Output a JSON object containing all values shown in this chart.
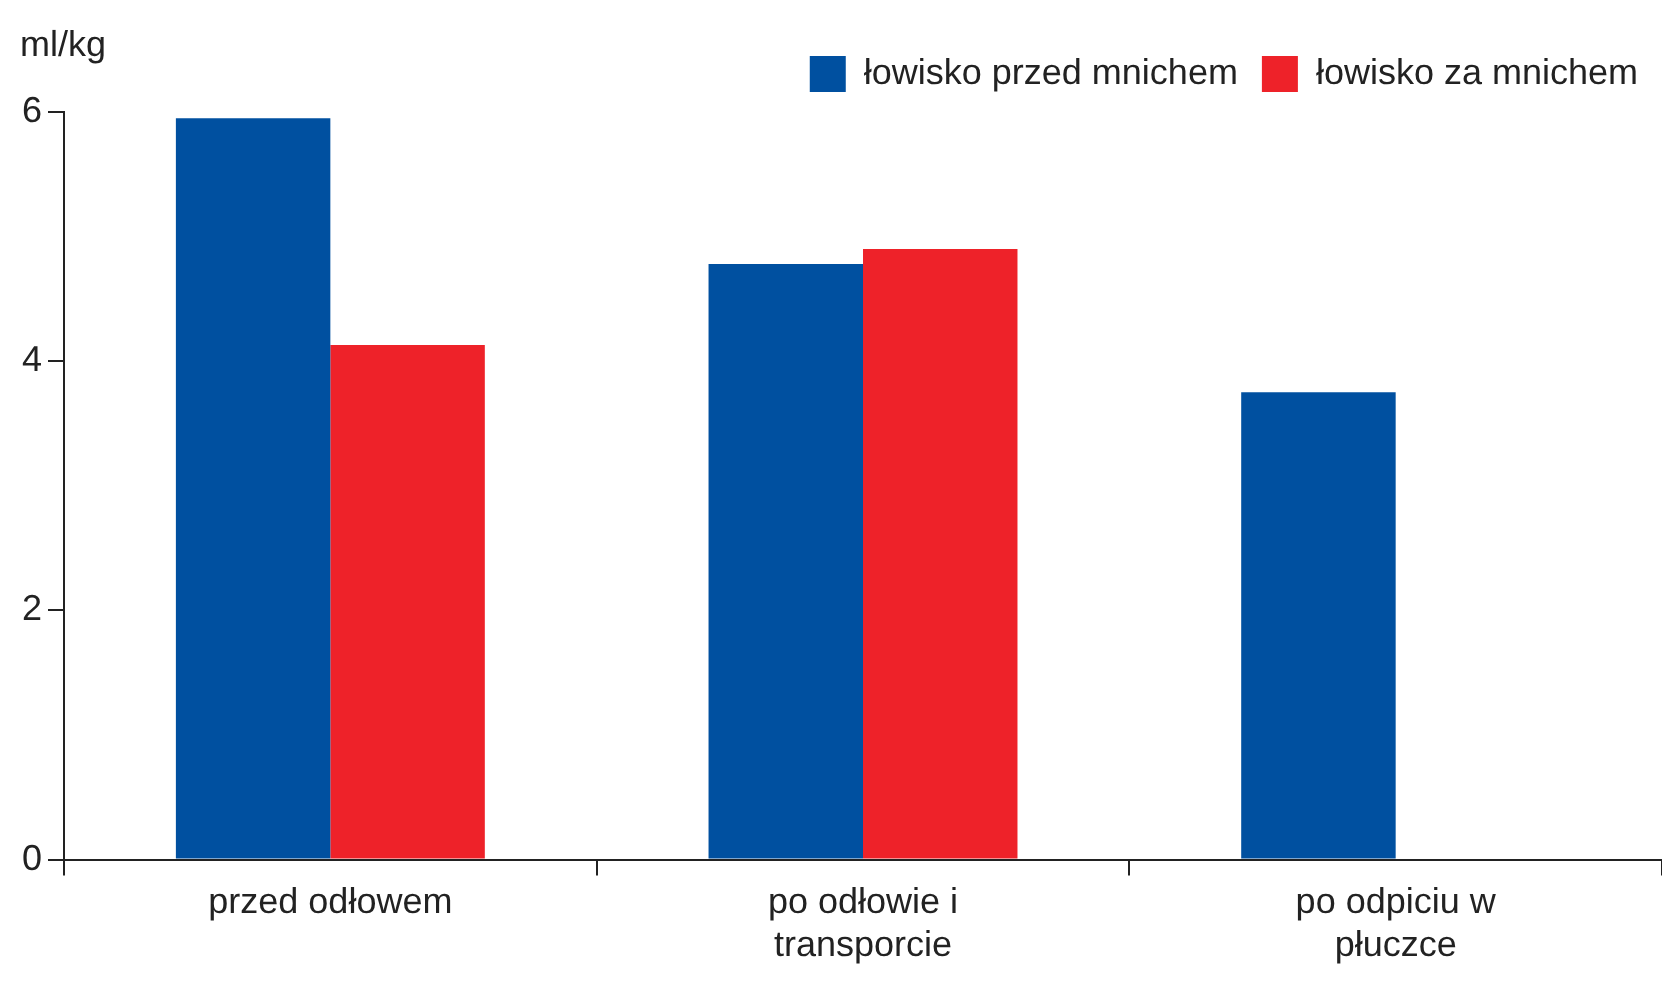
{
  "chart_data": {
    "type": "bar",
    "ylabel": "ml/kg",
    "categories": [
      "przed odłowem",
      "po odłowie i transporcie",
      "po odpiciu w płuczce"
    ],
    "series": [
      {
        "name": "łowisko przed mnichem",
        "color": "#0050a0",
        "values": [
          5.95,
          4.78,
          3.75
        ]
      },
      {
        "name": "łowisko za mnichem",
        "color": "#ee2229",
        "values": [
          4.13,
          4.9,
          null
        ]
      }
    ],
    "ylim": [
      0,
      6
    ],
    "yticks": [
      0,
      2,
      4,
      6
    ],
    "grid": false,
    "legend": "top right"
  }
}
